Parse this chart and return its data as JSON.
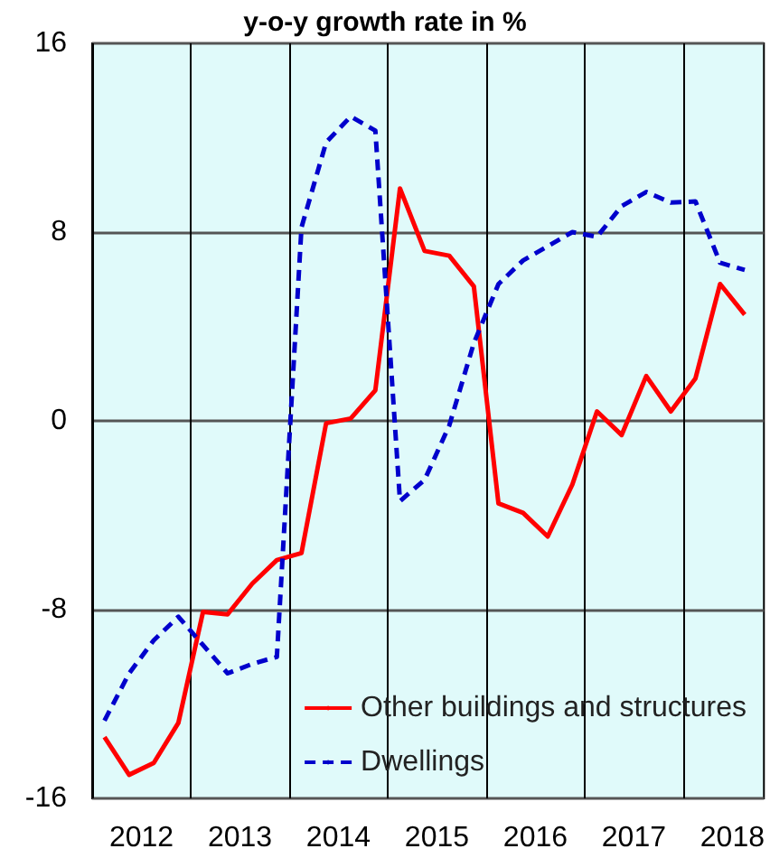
{
  "chart_data": {
    "type": "line",
    "title": "y-o-y growth rate in %",
    "x": [
      2012.125,
      2012.375,
      2012.625,
      2012.875,
      2013.125,
      2013.375,
      2013.625,
      2013.875,
      2014.125,
      2014.375,
      2014.625,
      2014.875,
      2015.125,
      2015.375,
      2015.625,
      2015.875,
      2016.125,
      2016.375,
      2016.625,
      2016.875,
      2017.125,
      2017.375,
      2017.625,
      2017.875,
      2018.125,
      2018.375,
      2018.625
    ],
    "series": [
      {
        "name": "Other buildings and structures",
        "color": "#ff0000",
        "line_style": "solid",
        "values": [
          -13.4,
          -15.0,
          -14.5,
          -12.8,
          -8.1,
          -8.2,
          -6.9,
          -5.9,
          -5.6,
          -0.1,
          0.1,
          1.3,
          9.85,
          7.2,
          7.0,
          5.7,
          -3.5,
          -3.9,
          -4.9,
          -2.7,
          0.4,
          -0.6,
          1.9,
          0.4,
          1.8,
          5.8,
          4.5
        ]
      },
      {
        "name": "Dwellings",
        "color": "#0000cc",
        "line_style": "dashed",
        "values": [
          -12.7,
          -10.7,
          -9.3,
          -8.3,
          -9.5,
          -10.7,
          -10.3,
          -10.0,
          8.2,
          11.8,
          12.9,
          12.3,
          -3.4,
          -2.5,
          -0.2,
          3.3,
          5.8,
          6.8,
          7.4,
          8.0,
          7.8,
          9.1,
          9.7,
          9.25,
          9.3,
          6.7,
          6.4
        ]
      }
    ],
    "xlim": [
      2012,
      2018.82
    ],
    "xticks": [
      {
        "value": 2012,
        "label": null
      },
      {
        "value": 2013,
        "label": null
      },
      {
        "value": 2014,
        "label": null
      },
      {
        "value": 2015,
        "label": null
      },
      {
        "value": 2016,
        "label": null
      },
      {
        "value": 2017,
        "label": null
      },
      {
        "value": 2018,
        "label": null
      },
      {
        "value": 2012.5,
        "label": "2012"
      },
      {
        "value": 2013.5,
        "label": "2013"
      },
      {
        "value": 2014.5,
        "label": "2014"
      },
      {
        "value": 2015.5,
        "label": "2015"
      },
      {
        "value": 2016.5,
        "label": "2016"
      },
      {
        "value": 2017.5,
        "label": "2017"
      },
      {
        "value": 2018.5,
        "label": "2018"
      }
    ],
    "ylim": [
      -16,
      16
    ],
    "yticks": [
      -16,
      -8,
      0,
      8,
      16
    ],
    "grid": true,
    "legend": "bottom",
    "marker": "none"
  }
}
